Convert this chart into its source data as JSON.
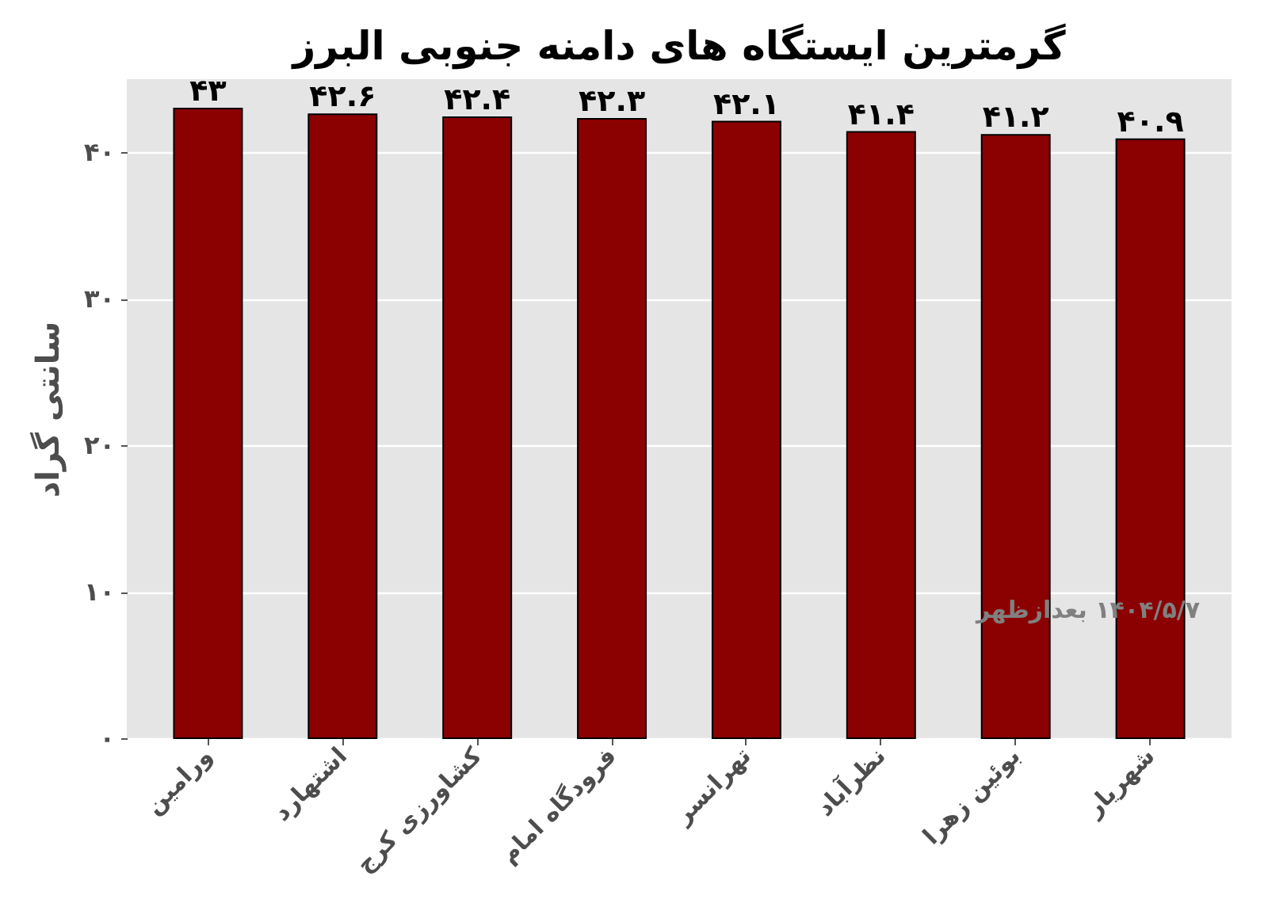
{
  "chart_data": {
    "type": "bar",
    "title": "گرمترین ایستگاه های دامنه جنوبی البرز",
    "ylabel": "سانتی گراد",
    "categories": [
      "ورامین",
      "اشتهارد",
      "کشاورزی کرج",
      "فرودگاه امام",
      "تهرانسر",
      "نظرآباد",
      "بوئین زهرا",
      "شهریار"
    ],
    "values": [
      43,
      42.6,
      42.4,
      42.3,
      42.1,
      41.4,
      41.2,
      40.9
    ],
    "value_labels": [
      "۴۳",
      "۴۲.۶",
      "۴۲.۴",
      "۴۲.۳",
      "۴۲.۱",
      "۴۱.۴",
      "۴۱.۲",
      "۴۰.۹"
    ],
    "color": "#8b0000",
    "ylim": [
      0,
      45
    ],
    "yticks": [
      {
        "value": 0,
        "label": "۰"
      },
      {
        "value": 10,
        "label": "۱۰"
      },
      {
        "value": 20,
        "label": "۲۰"
      },
      {
        "value": 30,
        "label": "۳۰"
      },
      {
        "value": 40,
        "label": "۴۰"
      }
    ],
    "grid": "y",
    "annotations": [
      "۱۴۰۴/۵/۷ بعدازظهر"
    ]
  }
}
